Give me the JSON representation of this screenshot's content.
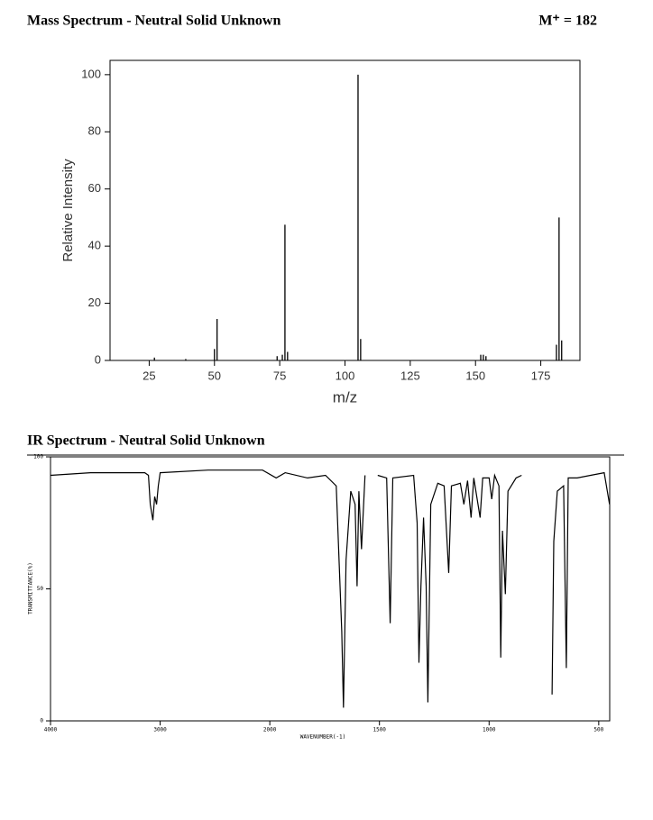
{
  "header": {
    "ms_title": "Mass Spectrum - Neutral Solid Unknown",
    "molecular_ion": "M⁺ = 182",
    "ir_title": "IR Spectrum - Neutral Solid Unknown"
  },
  "chart_data": [
    {
      "type": "bar",
      "xlabel": "m/z",
      "ylabel": "Relative Intensity",
      "color": "#000000",
      "x": [
        27,
        39,
        50,
        51,
        74,
        76,
        77,
        78,
        105,
        106,
        152,
        153,
        154,
        181,
        182,
        183
      ],
      "values": [
        1,
        0.5,
        4,
        14.5,
        1.5,
        2,
        47.5,
        3,
        100,
        7.5,
        2,
        2,
        1.5,
        5.5,
        50,
        7
      ],
      "xlim": [
        10,
        190
      ],
      "xticks": [
        25,
        50,
        75,
        100,
        125,
        150,
        175
      ],
      "ylim": [
        0,
        105
      ],
      "yticks": [
        0,
        20,
        40,
        60,
        80,
        100
      ]
    },
    {
      "type": "line",
      "xlabel": "WAVENUMBER(-1)",
      "ylabel": "TRANSMITTANCE(%)",
      "color": "#000000",
      "x_scale_change": 2000,
      "x": [
        4000,
        3636,
        3140,
        3107,
        3090,
        3066,
        3050,
        3033,
        3017,
        3000,
        2562,
        2066,
        1971,
        1930,
        1828,
        1746,
        1697,
        1672,
        1664,
        1652,
        1631,
        1611,
        1602,
        1594,
        1582,
        1566,
        1540,
        1508,
        1467,
        1451,
        1439,
        1344,
        1328,
        1320,
        1311,
        1299,
        1287,
        1279,
        1266,
        1234,
        1205,
        1184,
        1172,
        1131,
        1115,
        1098,
        1082,
        1070,
        1041,
        1029,
        1000,
        988,
        975,
        955,
        947,
        939,
        926,
        914,
        877,
        852,
        780,
        713,
        705,
        689,
        660,
        648,
        639,
        598,
        537,
        475,
        451
      ],
      "values": [
        93,
        94,
        94,
        93,
        82,
        76,
        85,
        82,
        89,
        94,
        95,
        95,
        92,
        94,
        92,
        93,
        89,
        34,
        5,
        61,
        87,
        82,
        51,
        87,
        65,
        93,
        null,
        93,
        92,
        37,
        92,
        93,
        75,
        22,
        51,
        77,
        51,
        7,
        82,
        90,
        89,
        56,
        89,
        90,
        82,
        91,
        77,
        92,
        77,
        92,
        92,
        84,
        93,
        89,
        24,
        72,
        48,
        87,
        92,
        93,
        null,
        10,
        68,
        87,
        89,
        20,
        92,
        92,
        93,
        94,
        82
      ],
      "xlim": [
        4000,
        450
      ],
      "xticks": [
        4000,
        3000,
        2000,
        1500,
        1000,
        500
      ],
      "ylim": [
        0,
        100
      ],
      "yticks": [
        0,
        50,
        100
      ]
    }
  ]
}
